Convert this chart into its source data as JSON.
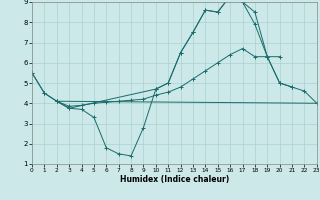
{
  "xlabel": "Humidex (Indice chaleur)",
  "xlim": [
    0,
    23
  ],
  "ylim": [
    1,
    9
  ],
  "xticks": [
    0,
    1,
    2,
    3,
    4,
    5,
    6,
    7,
    8,
    9,
    10,
    11,
    12,
    13,
    14,
    15,
    16,
    17,
    18,
    19,
    20,
    21,
    22,
    23
  ],
  "yticks": [
    1,
    2,
    3,
    4,
    5,
    6,
    7,
    8,
    9
  ],
  "background_color": "#cce8e8",
  "grid_color": "#aad0d0",
  "line_color": "#1a6b6b",
  "curve1_x": [
    0,
    1,
    2,
    3,
    4,
    5,
    6,
    7,
    8,
    9,
    10,
    11,
    12,
    13,
    14,
    15,
    16,
    17,
    18,
    19,
    20,
    21
  ],
  "curve1_y": [
    5.5,
    4.5,
    4.1,
    3.75,
    3.7,
    3.3,
    1.8,
    1.5,
    1.4,
    2.8,
    4.7,
    5.0,
    6.5,
    7.5,
    8.6,
    8.5,
    9.3,
    9.0,
    8.5,
    6.3,
    5.0,
    4.8
  ],
  "curve2_x": [
    2,
    23
  ],
  "curve2_y": [
    4.1,
    4.0
  ],
  "curve3_x": [
    2,
    3,
    4,
    5,
    6,
    7,
    8,
    9,
    10,
    11,
    12,
    13,
    14,
    15,
    16,
    17,
    18,
    19,
    20
  ],
  "curve3_y": [
    4.1,
    3.85,
    3.9,
    4.0,
    4.05,
    4.1,
    4.15,
    4.2,
    4.4,
    4.55,
    4.8,
    5.2,
    5.6,
    6.0,
    6.4,
    6.7,
    6.3,
    6.3,
    6.3
  ],
  "curve4_x": [
    0,
    1,
    2,
    3,
    10,
    11,
    12,
    13,
    14,
    15,
    16,
    17,
    18,
    19,
    20,
    21,
    22,
    23
  ],
  "curve4_y": [
    5.5,
    4.5,
    4.1,
    3.75,
    4.7,
    5.0,
    6.5,
    7.5,
    8.6,
    8.5,
    9.3,
    9.0,
    7.9,
    6.3,
    5.0,
    4.8,
    4.6,
    4.0
  ]
}
